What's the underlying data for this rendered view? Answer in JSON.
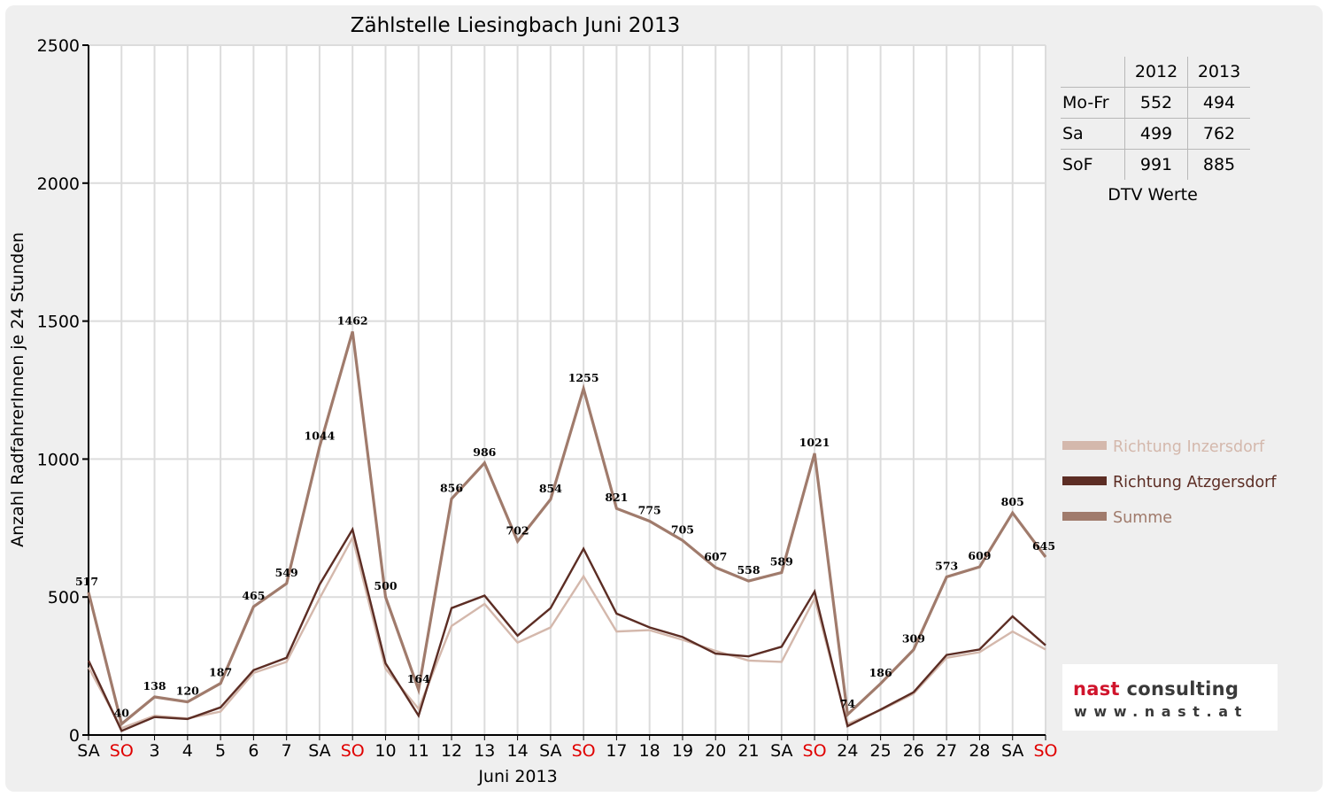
{
  "chart_data": {
    "type": "line",
    "title": "Zählstelle Liesingbach Juni 2013",
    "xlabel": "Juni 2013",
    "ylabel": "Anzahl RadfahrerInnen je 24 Stunden",
    "ylim": [
      0,
      2500
    ],
    "yticks": [
      "0",
      "500",
      "1000",
      "1500",
      "2000",
      "2500"
    ],
    "grid": true,
    "legend_position": "right",
    "categories": [
      "SA",
      "SO",
      "3",
      "4",
      "5",
      "6",
      "7",
      "SA",
      "SO",
      "10",
      "11",
      "12",
      "13",
      "14",
      "SA",
      "SO",
      "17",
      "18",
      "19",
      "20",
      "21",
      "SA",
      "SO",
      "24",
      "25",
      "26",
      "27",
      "28",
      "SA",
      "SO"
    ],
    "sunday_label_color": "#e00000",
    "series": [
      {
        "name": "Richtung Inzersdorf",
        "color": "#d4b8ac",
        "values": [
          245,
          25,
          70,
          60,
          85,
          225,
          265,
          495,
          715,
          240,
          95,
          395,
          475,
          335,
          390,
          575,
          375,
          380,
          345,
          305,
          270,
          265,
          495,
          40,
          90,
          150,
          280,
          300,
          375,
          310
        ]
      },
      {
        "name": "Richtung Atzgersdorf",
        "color": "#5c2d24",
        "values": [
          270,
          15,
          65,
          58,
          100,
          235,
          280,
          545,
          745,
          260,
          70,
          460,
          505,
          360,
          460,
          675,
          440,
          390,
          355,
          295,
          285,
          320,
          520,
          32,
          92,
          155,
          290,
          310,
          430,
          325
        ]
      },
      {
        "name": "Summe",
        "color": "#a07b6c",
        "values": [
          517,
          40,
          138,
          120,
          187,
          465,
          549,
          1044,
          1462,
          500,
          164,
          856,
          986,
          702,
          854,
          1255,
          821,
          775,
          705,
          607,
          558,
          589,
          1021,
          74,
          186,
          309,
          573,
          609,
          805,
          645
        ]
      }
    ],
    "data_labels": [
      "517",
      "40",
      "138",
      "120",
      "187",
      "465",
      "549",
      "1044",
      "1462",
      "500",
      "164",
      "856",
      "986",
      "702",
      "854",
      "1255",
      "821",
      "775",
      "705",
      "607",
      "558",
      "589",
      "1021",
      "74",
      "186",
      "309",
      "573",
      "609",
      "805",
      "645"
    ]
  },
  "dtv_table": {
    "headers": [
      "",
      "2012",
      "2013"
    ],
    "rows": [
      {
        "label": "Mo-Fr",
        "v2012": "552",
        "v2013": "494"
      },
      {
        "label": "Sa",
        "v2012": "499",
        "v2013": "762"
      },
      {
        "label": "SoF",
        "v2012": "991",
        "v2013": "885"
      }
    ],
    "caption": "DTV Werte"
  },
  "logo": {
    "word1": "nast",
    "word2": " consulting",
    "url": "www.nast.at"
  }
}
